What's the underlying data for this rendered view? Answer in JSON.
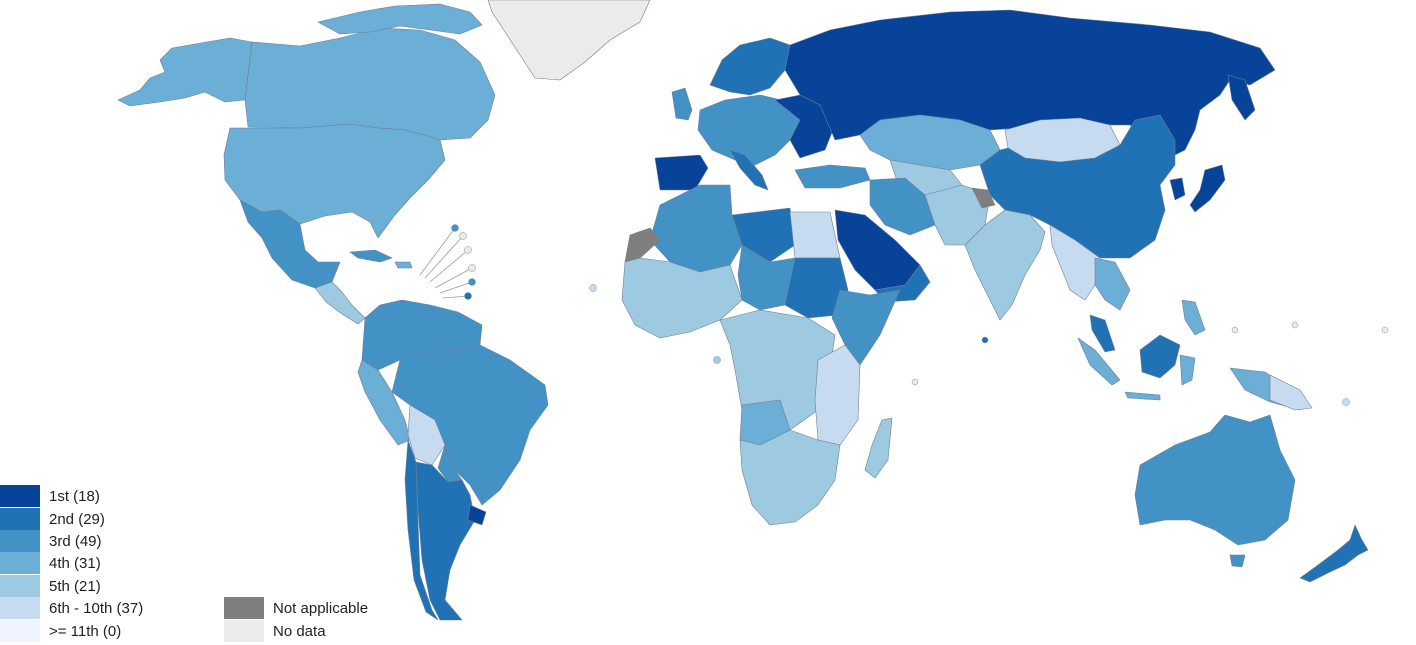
{
  "colors": {
    "rank_1": "#08439a",
    "rank_2": "#2171b5",
    "rank_3": "#4292c6",
    "rank_4": "#6baed6",
    "rank_5": "#9ecae1",
    "rank_6_10": "#c6dbef",
    "rank_11_plus": "#eff3ff",
    "not_applicable": "#7f7f7f",
    "no_data": "#ebebeb"
  },
  "legend": {
    "ranks": [
      {
        "label": "1st (18)",
        "color_key": "rank_1"
      },
      {
        "label": "2nd (29)",
        "color_key": "rank_2"
      },
      {
        "label": "3rd (49)",
        "color_key": "rank_3"
      },
      {
        "label": "4th (31)",
        "color_key": "rank_4"
      },
      {
        "label": "5th (21)",
        "color_key": "rank_5"
      },
      {
        "label": "6th - 10th (37)",
        "color_key": "rank_6_10"
      },
      {
        "label": ">= 11th (0)",
        "color_key": "rank_11_plus"
      }
    ],
    "status": [
      {
        "label": "Not applicable",
        "color_key": "not_applicable"
      },
      {
        "label": "No data",
        "color_key": "no_data"
      }
    ]
  }
}
